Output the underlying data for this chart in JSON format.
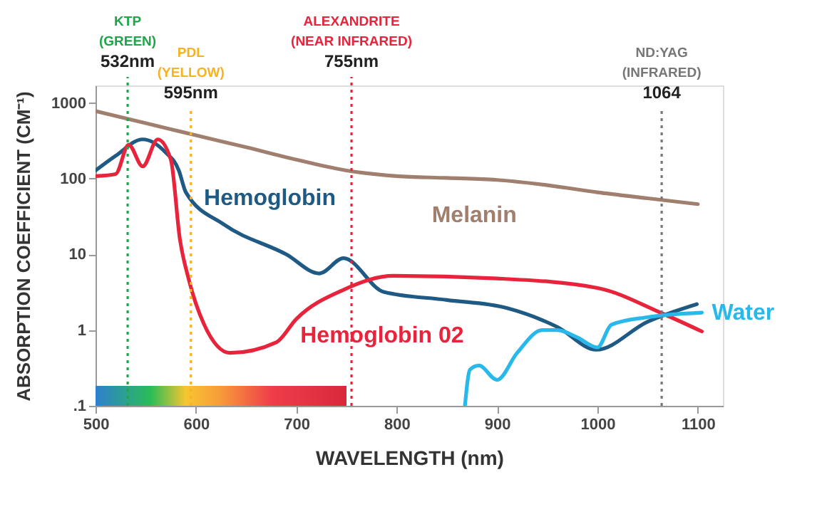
{
  "chart_data": {
    "type": "line",
    "xlabel": "WAVELENGTH (nm)",
    "ylabel": "ABSORPTION COEFFICIENT (CM⁻¹)",
    "log": "y",
    "xlim": [
      500,
      1125
    ],
    "xticks": [
      500,
      600,
      700,
      800,
      900,
      1000,
      1100
    ],
    "ylim": [
      0.1,
      1700
    ],
    "yticks": [
      {
        "value": 0.1,
        "label": ".1"
      },
      1,
      10,
      100,
      1000
    ],
    "grid": false,
    "legend": false,
    "marker": "none",
    "line_style": "solid",
    "series": [
      {
        "name": "Hemoglobin",
        "color": "#1f5a85",
        "x": [
          500,
          520,
          547,
          569,
          583,
          590,
          628,
          690,
          723,
          747,
          787,
          850,
          910,
          960,
          999,
          1050,
          1099
        ],
        "values": [
          128,
          200,
          330,
          227,
          128,
          66,
          24.7,
          10,
          5.6,
          8.9,
          3.2,
          2.5,
          1.95,
          1.1,
          0.55,
          1.29,
          2.2
        ]
      },
      {
        "name": "Melanin",
        "color": "#a07f6e",
        "x": [
          500,
          550,
          600,
          650,
          700,
          750,
          800,
          850,
          900,
          950,
          1000,
          1050,
          1100
        ],
        "values": [
          780,
          540,
          373,
          260,
          178,
          128,
          108,
          102,
          96,
          82,
          66,
          55,
          46
        ]
      },
      {
        "name": "Hemoglobin 02",
        "color": "#e8243c",
        "x": [
          500,
          520,
          533,
          547,
          562,
          575,
          584,
          593,
          608,
          634,
          680,
          700,
          747,
          797,
          900,
          1000,
          1065,
          1104
        ],
        "values": [
          108,
          115,
          280,
          145,
          330,
          178,
          16,
          4.6,
          1.2,
          0.5,
          0.69,
          1.4,
          3.4,
          5.2,
          4.8,
          3.6,
          1.65,
          0.96
        ]
      },
      {
        "name": "Water",
        "color": "#29b8ea",
        "x": [
          868,
          873,
          882,
          900,
          920,
          945,
          960,
          980,
          1000,
          1014,
          1050,
          1104
        ],
        "values": [
          0.1,
          0.3,
          0.34,
          0.22,
          0.5,
          1.0,
          1.0,
          0.8,
          0.59,
          1.18,
          1.48,
          1.7
        ]
      }
    ],
    "ref_lines": [
      {
        "axis": "x",
        "value": 532,
        "label": "KTP\n(GREEN)\n532nm",
        "color": "#1fa64a",
        "line_style": "dotted"
      },
      {
        "axis": "x",
        "value": 595,
        "label": "PDL\n(YELLOW)\n595nm",
        "color": "#f5b324",
        "line_style": "dotted"
      },
      {
        "axis": "x",
        "value": 755,
        "label": "ALEXANDRITE\n(NEAR INFRARED)\n755nm",
        "color": "#e8243c",
        "line_style": "dotted"
      },
      {
        "axis": "x",
        "value": 1064,
        "label": "ND:YAG\n(INFRARED)\n1064",
        "color": "#777777",
        "line_style": "dotted"
      }
    ],
    "bands": [
      {
        "axis": "x",
        "from": 500,
        "to": 750
      }
    ]
  }
}
